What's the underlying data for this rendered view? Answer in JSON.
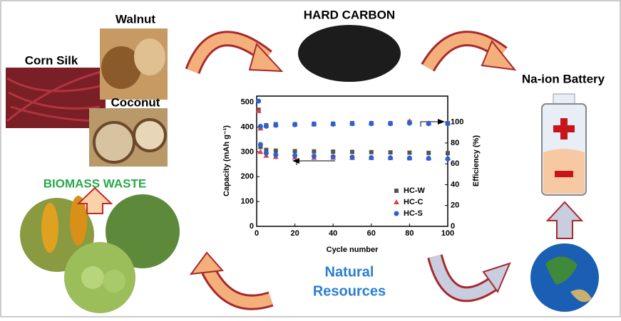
{
  "labels": {
    "walnut": "Walnut",
    "corn_silk": "Corn Silk",
    "coconut": "Coconut",
    "hard_carbon": "HARD CARBON",
    "battery": "Na-ion Battery",
    "biomass": "BIOMASS WASTE",
    "natural": "Natural",
    "resources": "Resources"
  },
  "chart_data": {
    "type": "scatter",
    "x_label": "Cycle number",
    "y_label": "Capacity (mAh g⁻¹)",
    "y2_label": "Efficiency (%)",
    "x": [
      1,
      2,
      5,
      10,
      20,
      30,
      40,
      50,
      60,
      70,
      80,
      90,
      100
    ],
    "series": [
      {
        "name": "HC-W",
        "color": "#555555",
        "marker": "square",
        "values": [
          470,
          320,
          308,
          305,
          303,
          302,
          301,
          300,
          299,
          298,
          297,
          296,
          295
        ],
        "efficiency": [
          null,
          95,
          97,
          98,
          98,
          98.5,
          98.5,
          99,
          99,
          99,
          100,
          99,
          99
        ]
      },
      {
        "name": "HC-C",
        "color": "#e0404e",
        "marker": "triangle",
        "values": [
          465,
          300,
          285,
          280,
          278,
          277,
          277,
          276,
          276,
          276,
          275,
          275,
          275
        ],
        "efficiency": [
          null,
          94,
          97,
          97.5,
          98,
          98,
          98.5,
          98.5,
          99,
          99,
          101,
          99,
          99
        ]
      },
      {
        "name": "HC-S",
        "color": "#2563d6",
        "marker": "circle",
        "values": [
          505,
          330,
          295,
          288,
          285,
          283,
          281,
          279,
          277,
          276,
          275,
          274,
          272
        ],
        "efficiency": [
          null,
          96,
          96,
          97,
          97.5,
          98,
          98,
          98.5,
          98.5,
          98.5,
          99,
          98.5,
          98.5
        ]
      }
    ],
    "xlim": [
      0,
      100
    ],
    "xticks": [
      0,
      20,
      40,
      60,
      80,
      100
    ],
    "ylim": [
      0,
      525
    ],
    "yticks": [
      0,
      100,
      200,
      300,
      400,
      500
    ],
    "y2lim": [
      0,
      125
    ],
    "y2ticks": [
      0,
      20,
      40,
      60,
      80,
      100
    ]
  }
}
